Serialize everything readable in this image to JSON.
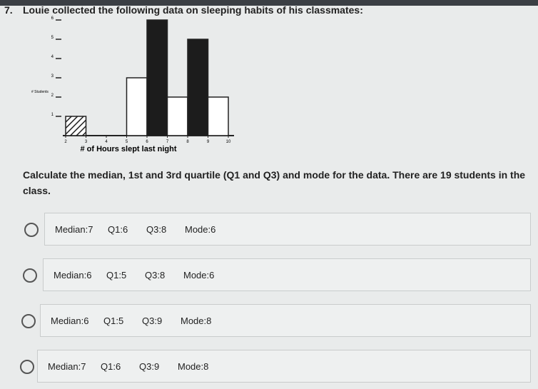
{
  "question": {
    "number": "7.",
    "text": "Louie collected the following data on sleeping habits of his classmates:",
    "prompt": "Calculate the median, 1st and 3rd quartile (Q1 and Q3) and mode for the data. There are 19 students in the class."
  },
  "chart_data": {
    "type": "histogram",
    "x_label": "# of Hours slept last night",
    "y_label": "# Students",
    "bins": [
      2,
      3,
      4,
      5,
      6,
      7,
      8,
      9,
      10
    ],
    "values": [
      1,
      0,
      0,
      3,
      6,
      2,
      5,
      2
    ],
    "fills": [
      "hatch",
      "#ffffff",
      "#ffffff",
      "#ffffff",
      "#1c1c1c",
      "#ffffff",
      "#1c1c1c",
      "#ffffff"
    ],
    "xlim": [
      2,
      10
    ],
    "xticks": [
      2,
      3,
      4,
      5,
      6,
      7,
      8,
      9,
      10
    ],
    "ylim": [
      0,
      6
    ],
    "yticks": [
      1,
      2,
      3,
      4,
      5,
      6
    ]
  },
  "options": [
    [
      "Median:7",
      "Q1:6",
      "Q3:8",
      "Mode:6"
    ],
    [
      "Median:6",
      "Q1:5",
      "Q3:8",
      "Mode:6"
    ],
    [
      "Median:6",
      "Q1:5",
      "Q3:9",
      "Mode:8"
    ],
    [
      "Median:7",
      "Q1:6",
      "Q3:9",
      "Mode:8"
    ]
  ]
}
